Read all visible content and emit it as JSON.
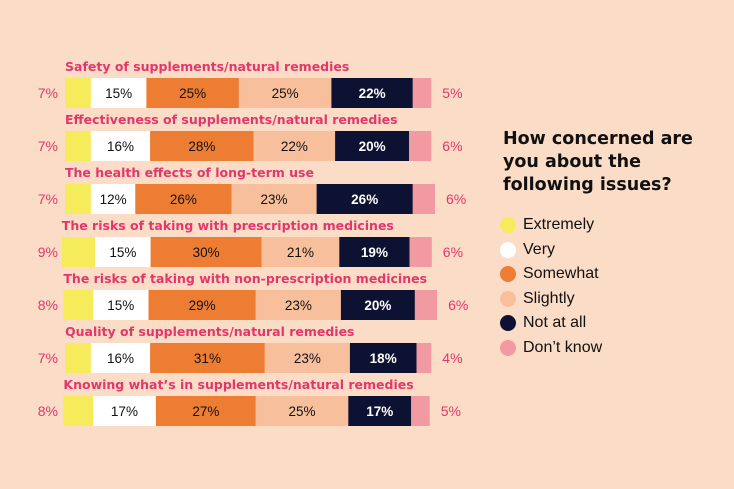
{
  "chart_data": {
    "type": "bar",
    "stacked": true,
    "orientation": "horizontal",
    "title": "How concerned are you about the following issues?",
    "categories": [
      "Safety of supplements/natural remedies",
      "Effectiveness of supplements/natural remedies",
      "The health effects of long-term use",
      "The risks of taking with prescription medicines",
      "The risks of taking with non-prescription medicines",
      "Quality of supplements/natural remedies",
      "Knowing what’s in supplements/natural remedies"
    ],
    "series": [
      {
        "name": "Extremely",
        "color": "#f6ec5b",
        "values": [
          7,
          7,
          7,
          9,
          8,
          7,
          8
        ]
      },
      {
        "name": "Very",
        "color": "#ffffff",
        "values": [
          15,
          16,
          12,
          15,
          15,
          16,
          17
        ]
      },
      {
        "name": "Somewhat",
        "color": "#ee7d34",
        "values": [
          25,
          28,
          26,
          30,
          29,
          31,
          27
        ]
      },
      {
        "name": "Slightly",
        "color": "#f8bf9c",
        "values": [
          25,
          22,
          23,
          21,
          23,
          23,
          25
        ]
      },
      {
        "name": "Not at all",
        "color": "#0d1233",
        "values": [
          22,
          20,
          26,
          19,
          20,
          18,
          17
        ]
      },
      {
        "name": "Don’t know",
        "color": "#f29aa1",
        "values": [
          5,
          6,
          6,
          6,
          6,
          4,
          5
        ]
      }
    ],
    "value_suffix": "%",
    "xlim": [
      0,
      100
    ],
    "legend_position": "right"
  },
  "colors": {
    "background": "#fbdcc6",
    "category_label": "#e2376a",
    "outside_label": "#e2376a"
  }
}
